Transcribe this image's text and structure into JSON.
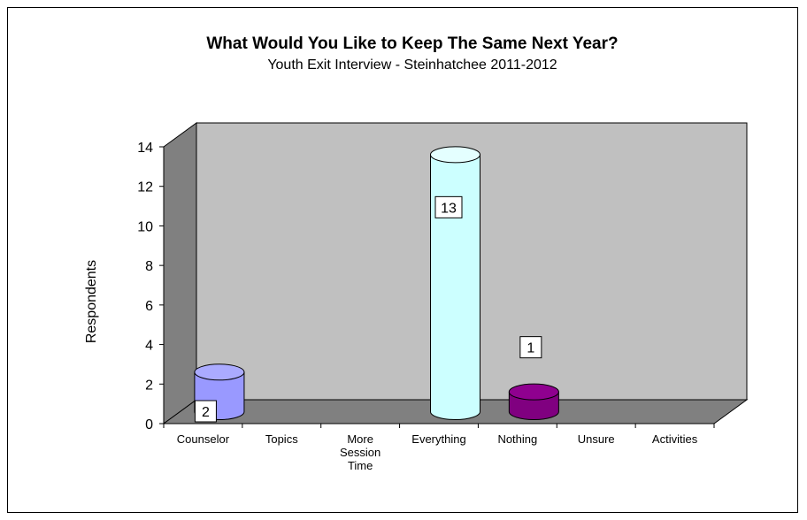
{
  "chart_data": {
    "type": "bar",
    "style": "3d-cylinder",
    "title": "What Would You Like to Keep The Same Next Year?",
    "subtitle": "Youth Exit Interview - Steinhatchee 2011-2012",
    "ylabel": "Respondents",
    "xlabel": "",
    "ylim": [
      0,
      14
    ],
    "yticks": [
      "0",
      "2",
      "4",
      "6",
      "8",
      "10",
      "12",
      "14"
    ],
    "categories": [
      "Counselor",
      "Topics",
      "More Session Time",
      "Everything",
      "Nothing",
      "Unsure",
      "Activities"
    ],
    "category_lines": [
      [
        "Counselor"
      ],
      [
        "Topics"
      ],
      [
        "More",
        "Session",
        "Time"
      ],
      [
        "Everything"
      ],
      [
        "Nothing"
      ],
      [
        "Unsure"
      ],
      [
        "Activities"
      ]
    ],
    "values": [
      2,
      0,
      0,
      13,
      1,
      0,
      0
    ],
    "data_labels": [
      "2",
      "",
      "",
      "13",
      "1",
      "",
      ""
    ],
    "colors": [
      "#9999ff",
      null,
      null,
      "#ccffff",
      "#800080",
      null,
      null
    ],
    "wall_color": "#c0c0c0",
    "side_wall_color": "#808080",
    "floor_color": "#808080",
    "grid": false,
    "legend": "none"
  }
}
